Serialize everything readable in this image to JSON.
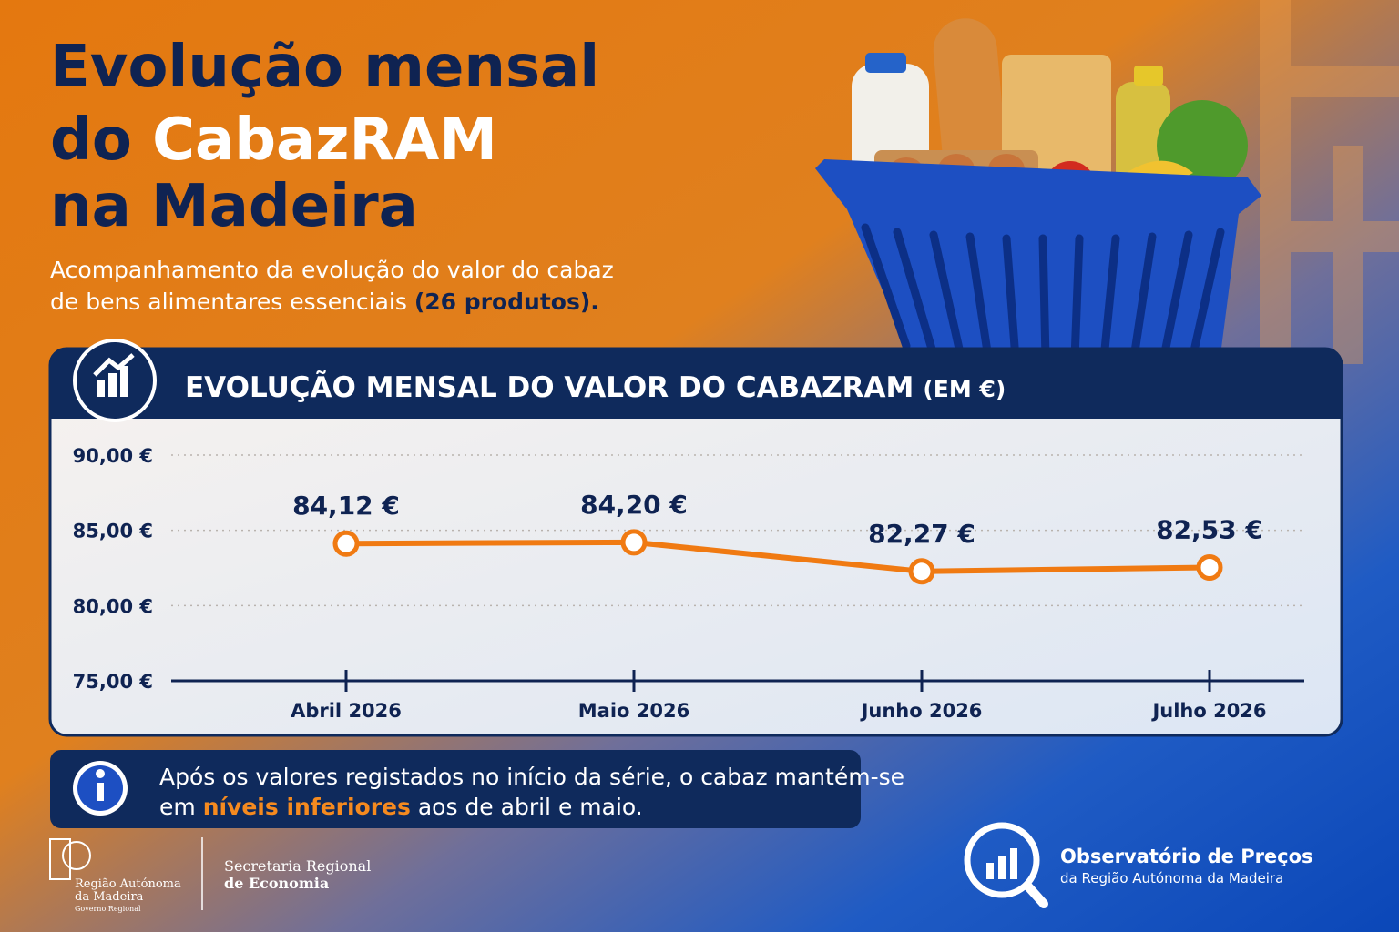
{
  "header": {
    "title_line1": "Evolução mensal",
    "title_line2_prefix": "do ",
    "title_line2_highlight": "CabazRAM",
    "title_line3": "na Madeira",
    "subtitle_line1": "Acompanhamento da evolução do valor do cabaz",
    "subtitle_line2": "de bens alimentares essenciais ",
    "subtitle_highlight": "(26 produtos)."
  },
  "chart_data": {
    "type": "line",
    "title": "EVOLUÇÃO MENSAL DO VALOR DO CABAZRAM",
    "title_unit": "(EM €)",
    "categories": [
      "Abril 2026",
      "Maio 2026",
      "Junho 2026",
      "Julho 2026"
    ],
    "values": [
      84.12,
      84.2,
      82.27,
      82.53
    ],
    "value_labels": [
      "84,12 €",
      "84,20 €",
      "82,27 €",
      "82,53 €"
    ],
    "color": "#f07a12",
    "ylim": [
      75,
      90
    ],
    "yticks": [
      {
        "value": 75,
        "label": "75,00 €"
      },
      {
        "value": 80,
        "label": "80,00 €"
      },
      {
        "value": 85,
        "label": "85,00 €"
      },
      {
        "value": 90,
        "label": "90,00 €"
      }
    ],
    "grid": true
  },
  "note": {
    "text_before": "Após os valores registados no início da série, o cabaz mantém-se",
    "text_line2_before": "em ",
    "highlight": "níveis inferiores",
    "text_after": " aos de abril e maio."
  },
  "footer": {
    "region_line1": "Região Autónoma",
    "region_line2": "da Madeira",
    "region_line3": "Governo Regional",
    "secretariat_line1": "Secretaria Regional",
    "secretariat_line2": "de Economia",
    "observatory_title": "Observatório de Preços",
    "observatory_subtitle": "da Região Autónoma da Madeira"
  }
}
